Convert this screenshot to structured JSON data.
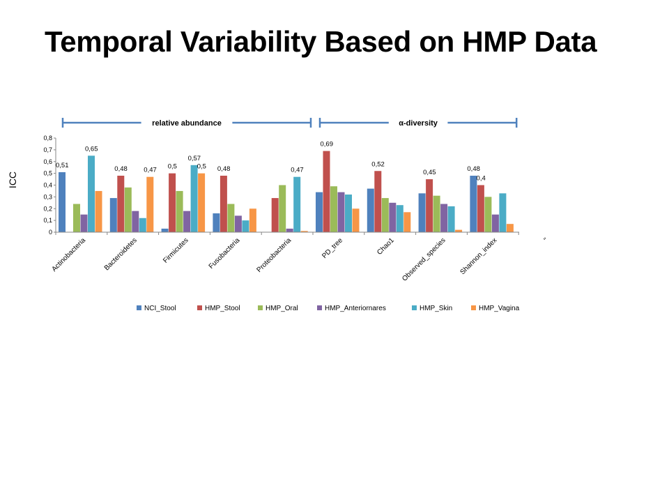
{
  "slide": {
    "title": "Temporal Variability Based on HMP Data"
  },
  "chart_data": {
    "type": "bar",
    "ylabel": "ICC",
    "ylim": [
      0,
      0.8
    ],
    "y_ticks": [
      "0",
      "0,1",
      "0,2",
      "0,3",
      "0,4",
      "0,5",
      "0,6",
      "0,7",
      "0,8"
    ],
    "grid": false,
    "legend_position": "bottom",
    "categories": [
      "Actinobacteria",
      "Bacteroidetes",
      "Firmicutes",
      "Fusobacteria",
      "Proteobacteria",
      "PD_tree",
      "Chao1",
      "Observed_species",
      "Shannon_index",
      "''"
    ],
    "series": [
      {
        "name": "NCI_Stool",
        "color": "#4F81BD",
        "values": [
          0.51,
          0.29,
          0.03,
          0.16,
          null,
          0.34,
          0.37,
          0.33,
          0.48,
          null
        ]
      },
      {
        "name": "HMP_Stool",
        "color": "#C0504D",
        "values": [
          null,
          0.48,
          0.5,
          0.48,
          0.29,
          0.69,
          0.52,
          0.45,
          0.4,
          null
        ]
      },
      {
        "name": "HMP_Oral",
        "color": "#9BBB59",
        "values": [
          0.24,
          0.38,
          0.35,
          0.24,
          0.4,
          0.39,
          0.29,
          0.31,
          0.3,
          null
        ]
      },
      {
        "name": "HMP_Anteriornares",
        "color": "#8064A2",
        "values": [
          0.15,
          0.18,
          0.18,
          0.14,
          0.03,
          0.34,
          0.25,
          0.24,
          0.15,
          null
        ]
      },
      {
        "name": "HMP_Skin",
        "color": "#4BACC6",
        "values": [
          0.65,
          0.12,
          0.57,
          0.1,
          0.47,
          0.32,
          0.23,
          0.22,
          0.33,
          null
        ]
      },
      {
        "name": "HMP_Vagina",
        "color": "#F79646",
        "values": [
          0.35,
          0.47,
          0.5,
          0.2,
          0.01,
          0.2,
          0.17,
          0.02,
          0.07,
          null
        ]
      }
    ],
    "data_labels": [
      {
        "category": 0,
        "series": 0,
        "text": "0,51"
      },
      {
        "category": 0,
        "series": 4,
        "text": "0,65"
      },
      {
        "category": 1,
        "series": 1,
        "text": "0,48"
      },
      {
        "category": 1,
        "series": 5,
        "text": "0,47"
      },
      {
        "category": 2,
        "series": 1,
        "text": "0,5"
      },
      {
        "category": 2,
        "series": 4,
        "text": "0,57"
      },
      {
        "category": 2,
        "series": 5,
        "text": "0,5"
      },
      {
        "category": 3,
        "series": 1,
        "text": "0,48"
      },
      {
        "category": 4,
        "series": 4,
        "text": "0,47"
      },
      {
        "category": 5,
        "series": 1,
        "text": "0,69"
      },
      {
        "category": 6,
        "series": 1,
        "text": "0,52"
      },
      {
        "category": 7,
        "series": 1,
        "text": "0,45"
      },
      {
        "category": 8,
        "series": 0,
        "text": "0,48"
      },
      {
        "category": 8,
        "series": 1,
        "text": "0,4"
      }
    ],
    "brackets": [
      {
        "label": "relative abundance",
        "from_category": 0,
        "to_category": 4
      },
      {
        "label": "α-diversity",
        "from_category": 5,
        "to_category": 8
      }
    ],
    "bracket_color": "#4F81BD"
  }
}
